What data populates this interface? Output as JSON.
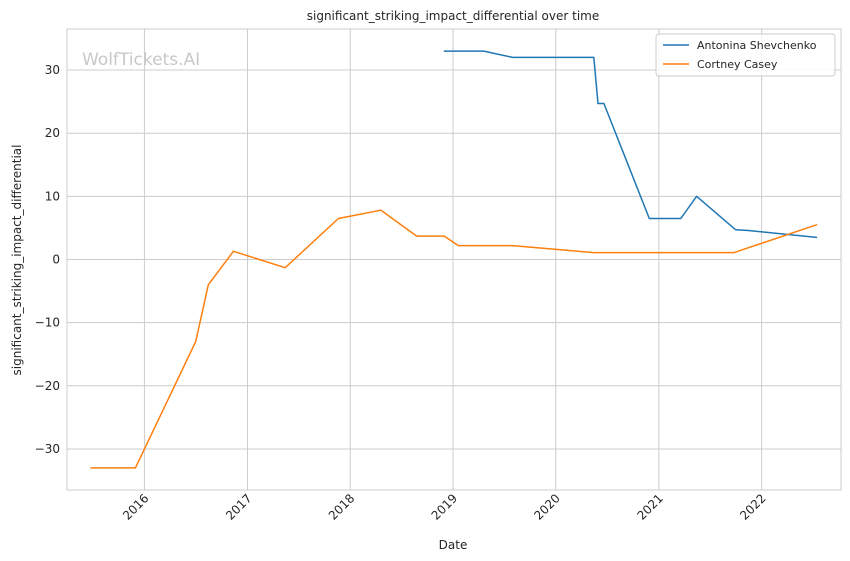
{
  "chart_data": {
    "type": "line",
    "title": "significant_striking_impact_differential over time",
    "xlabel": "Date",
    "ylabel": "significant_striking_impact_differential",
    "watermark": "WolfTickets.AI",
    "x_ticks": [
      "2016",
      "2017",
      "2018",
      "2019",
      "2020",
      "2021",
      "2022"
    ],
    "y_ticks": [
      -30,
      -20,
      -10,
      0,
      10,
      20,
      30
    ],
    "xlim": [
      "2015-04-01",
      "2022-10-10"
    ],
    "ylim": [
      -36.5,
      36.5
    ],
    "grid": true,
    "legend_position": "top-right",
    "series": [
      {
        "name": "Antonina Shevchenko",
        "color": "#1f77b4",
        "points": [
          [
            "2018-12-01",
            33.0
          ],
          [
            "2019-04-20",
            33.0
          ],
          [
            "2019-08-01",
            32.0
          ],
          [
            "2020-05-15",
            32.0
          ],
          [
            "2020-05-30",
            24.7
          ],
          [
            "2020-06-20",
            24.7
          ],
          [
            "2020-11-28",
            6.5
          ],
          [
            "2021-03-20",
            6.5
          ],
          [
            "2021-05-15",
            10.0
          ],
          [
            "2021-10-01",
            4.7
          ],
          [
            "2021-11-15",
            4.6
          ],
          [
            "2022-07-15",
            3.5
          ]
        ]
      },
      {
        "name": "Cortney Casey",
        "color": "#ff7f0e",
        "points": [
          [
            "2015-06-25",
            -33.0
          ],
          [
            "2015-11-30",
            -33.0
          ],
          [
            "2016-07-01",
            -13.0
          ],
          [
            "2016-08-15",
            -4.0
          ],
          [
            "2016-11-12",
            1.3
          ],
          [
            "2017-05-15",
            -1.3
          ],
          [
            "2017-11-20",
            6.5
          ],
          [
            "2018-04-20",
            7.8
          ],
          [
            "2018-08-25",
            3.7
          ],
          [
            "2018-12-01",
            3.7
          ],
          [
            "2019-01-20",
            2.2
          ],
          [
            "2019-08-01",
            2.2
          ],
          [
            "2020-05-15",
            1.1
          ],
          [
            "2021-09-25",
            1.1
          ],
          [
            "2022-07-15",
            5.5
          ]
        ]
      }
    ]
  }
}
